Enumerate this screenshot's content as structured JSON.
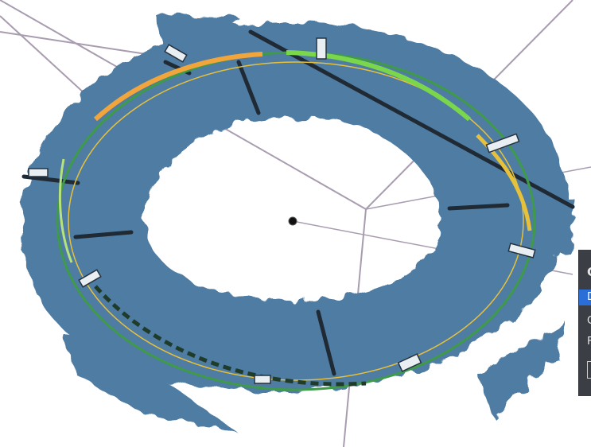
{
  "viewport": {
    "background": "#ffffff",
    "point_cloud_color": "#4f7ca3",
    "ring_colors": [
      "#f2a53b",
      "#7ad64a",
      "#3f9a4a",
      "#e8c13a"
    ],
    "axis_color": "#a89cb0",
    "origin_marker": "black-sphere"
  },
  "side_panel": {
    "row1": "C",
    "row2": "D",
    "row3": "C",
    "row4": "F"
  }
}
